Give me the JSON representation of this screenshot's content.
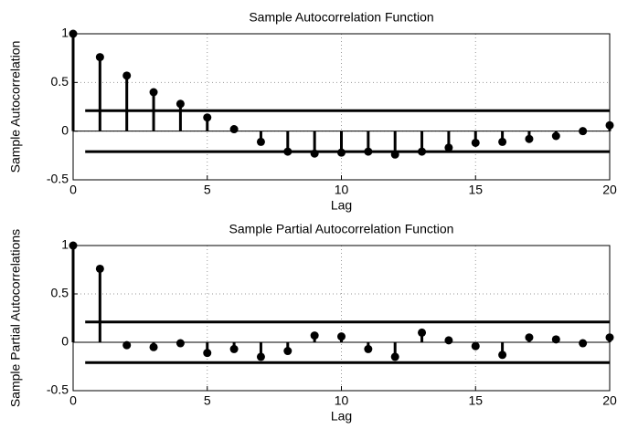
{
  "chart_data": [
    {
      "type": "stem",
      "title": "Sample Autocorrelation Function",
      "x_label": "Lag",
      "y_label": "Sample Autocorrelation",
      "x": [
        0,
        1,
        2,
        3,
        4,
        5,
        6,
        7,
        8,
        9,
        10,
        11,
        12,
        13,
        14,
        15,
        16,
        17,
        18,
        19,
        20
      ],
      "values": [
        1,
        0.76,
        0.57,
        0.4,
        0.28,
        0.14,
        0.02,
        -0.11,
        -0.21,
        -0.23,
        -0.22,
        -0.21,
        -0.24,
        -0.21,
        -0.17,
        -0.12,
        -0.11,
        -0.08,
        -0.05,
        0.0,
        0.06
      ],
      "confidence_bounds": [
        0.21,
        -0.21
      ],
      "color": "#000000",
      "xlim": [
        0,
        20
      ],
      "xticks": [
        0,
        5,
        10,
        15,
        20
      ],
      "ylim": [
        -0.5,
        1
      ],
      "yticks": [
        -0.5,
        0,
        0.5,
        1
      ],
      "grid": true
    },
    {
      "type": "stem",
      "title": "Sample Partial Autocorrelation Function",
      "x_label": "Lag",
      "y_label": "Sample Partial Autocorrelations",
      "x": [
        0,
        1,
        2,
        3,
        4,
        5,
        6,
        7,
        8,
        9,
        10,
        11,
        12,
        13,
        14,
        15,
        16,
        17,
        18,
        19,
        20
      ],
      "values": [
        1,
        0.76,
        -0.03,
        -0.05,
        -0.01,
        -0.11,
        -0.07,
        -0.15,
        -0.09,
        0.07,
        0.06,
        -0.07,
        -0.15,
        0.1,
        0.02,
        -0.04,
        -0.13,
        0.05,
        0.03,
        -0.01,
        0.05
      ],
      "confidence_bounds": [
        0.21,
        -0.21
      ],
      "color": "#000000",
      "xlim": [
        0,
        20
      ],
      "xticks": [
        0,
        5,
        10,
        15,
        20
      ],
      "ylim": [
        -0.5,
        1
      ],
      "yticks": [
        -0.5,
        0,
        0.5,
        1
      ],
      "grid": true
    }
  ]
}
